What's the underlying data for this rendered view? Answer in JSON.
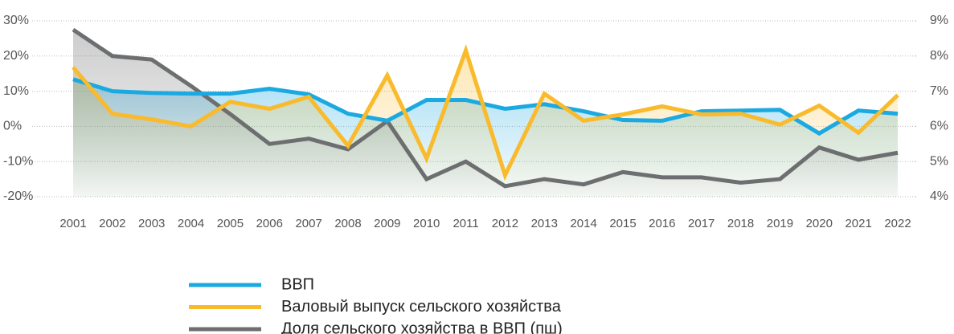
{
  "chart_data": {
    "type": "line",
    "categories": [
      "2001",
      "2002",
      "2003",
      "2004",
      "2005",
      "2006",
      "2007",
      "2008",
      "2009",
      "2010",
      "2011",
      "2012",
      "2013",
      "2014",
      "2015",
      "2016",
      "2017",
      "2018",
      "2019",
      "2020",
      "2021",
      "2022"
    ],
    "series": [
      {
        "name": "ВВП",
        "color": "#1ba9e1",
        "values": [
          13.4,
          10,
          9.5,
          9.3,
          9.3,
          10.7,
          9.1,
          3.6,
          1.6,
          7.5,
          7.5,
          5.0,
          6.3,
          4.3,
          1.8,
          1.6,
          4.3,
          4.5,
          4.7,
          -2.0,
          4.5,
          3.6
        ]
      },
      {
        "name": "Валовый выпуск сельского хозяйства",
        "color": "#f9ba2c",
        "values": [
          16.8,
          3.6,
          2.0,
          0,
          7.0,
          5.0,
          8.4,
          -5.5,
          14.5,
          -9.1,
          21.6,
          -13.9,
          9.3,
          1.6,
          3.4,
          5.7,
          3.4,
          3.6,
          0.5,
          5.9,
          -1.8,
          8.9
        ]
      },
      {
        "name": "Доля сельского хозяйства в ВВП (пш)",
        "color": "#6d6e70",
        "axis": "y2",
        "values": [
          8.75,
          8.0,
          7.9,
          7.15,
          6.35,
          5.5,
          5.65,
          5.35,
          6.15,
          4.5,
          5.0,
          4.3,
          4.5,
          4.35,
          4.7,
          4.55,
          4.55,
          4.4,
          4.5,
          5.4,
          5.05,
          5.25
        ]
      }
    ],
    "ylim": [
      -20,
      30
    ],
    "yticks": [
      {
        "value": -20,
        "label": "-20%"
      },
      {
        "value": -10,
        "label": "-10%"
      },
      {
        "value": 0,
        "label": "0%"
      },
      {
        "value": 10,
        "label": "10%"
      },
      {
        "value": 20,
        "label": "20%"
      },
      {
        "value": 30,
        "label": "30%"
      }
    ],
    "y2lim": [
      4,
      9
    ],
    "y2ticks": [
      {
        "value": 4,
        "label": "4%"
      },
      {
        "value": 5,
        "label": "5%"
      },
      {
        "value": 6,
        "label": "6%"
      },
      {
        "value": 7,
        "label": "7%"
      },
      {
        "value": 8,
        "label": "8%"
      },
      {
        "value": 9,
        "label": "9%"
      }
    ],
    "grid": true,
    "legend": "bottom"
  }
}
